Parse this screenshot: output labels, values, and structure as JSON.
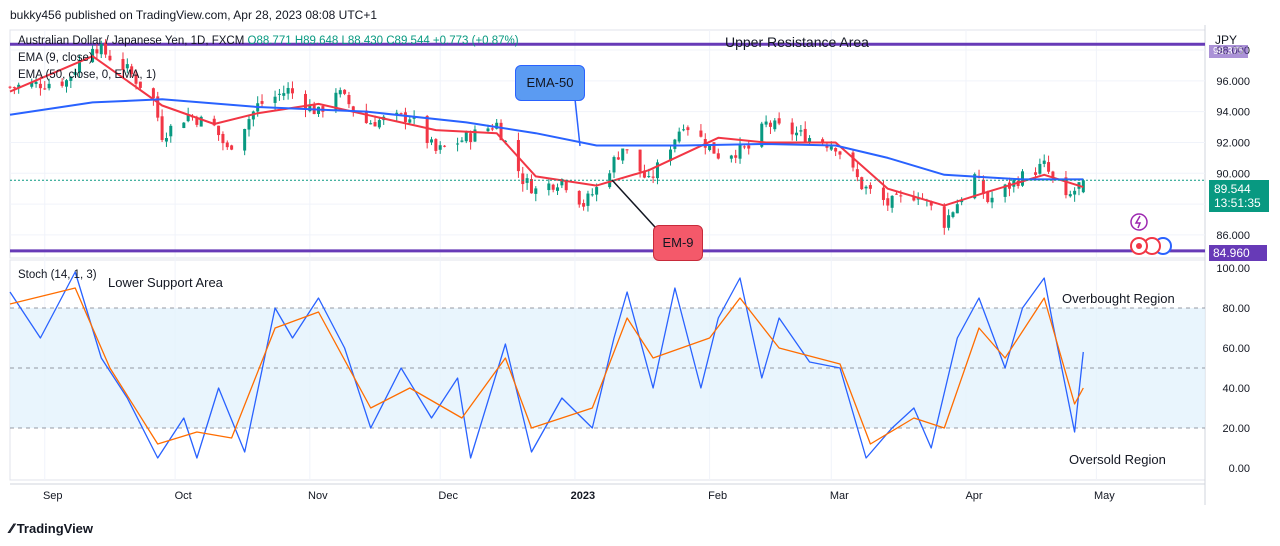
{
  "header": {
    "publisher_line": "bukky456 published on TradingView.com, Apr 28, 2023 08:08 UTC+1",
    "symbol": "Australian Dollar / Japanese Yen, 1D, FXCM",
    "ohlc": "O88.771 H89.648 L88.430 C89.544 +0.773 (+0.87%)",
    "currency": "JPY"
  },
  "legend": {
    "ema9": "EMA (9, close)",
    "ema50": "EMA (50, close, 0, EMA, 1)",
    "stoch": "Stoch (14, 1, 3)"
  },
  "annotations": {
    "upper_resistance": "Upper Resistance Area",
    "lower_support": "Lower Support Area",
    "ema50_callout": "EMA-50",
    "ema9_callout": "EM-9",
    "overbought": "Overbought Region",
    "oversold": "Oversold Region"
  },
  "price_labels": {
    "last_price": "89.544",
    "countdown": "13:51:35",
    "support_level": "84.960",
    "resistance_level": "98.375"
  },
  "colors": {
    "up": "#089981",
    "down": "#F23645",
    "ema9": "#F23645",
    "ema50": "#2962FF",
    "level_line": "#673AB7",
    "stoch_k": "#2962FF",
    "stoch_d": "#FF6D00",
    "stoch_band": "#E3F2FD"
  },
  "footer": {
    "brand": "TradingView"
  },
  "chart_data": [
    {
      "type": "candlestick",
      "title": "Australian Dollar / Japanese Yen, 1D, FXCM",
      "x_tick_labels": [
        "Sep",
        "Oct",
        "Nov",
        "Dec",
        "2023",
        "Feb",
        "Mar",
        "Apr",
        "May"
      ],
      "y_ticks": [
        86.0,
        88.0,
        90.0,
        92.0,
        94.0,
        96.0,
        98.0
      ],
      "ylim": [
        84.5,
        99.3
      ],
      "horizontal_levels": [
        98.375,
        84.96
      ],
      "last_close": 89.544,
      "close_path": [
        {
          "date": "2022-08-24",
          "close": 95.6
        },
        {
          "date": "2022-09-06",
          "close": 96.0
        },
        {
          "date": "2022-09-12",
          "close": 98.4
        },
        {
          "date": "2022-09-20",
          "close": 96.7
        },
        {
          "date": "2022-09-26",
          "close": 94.8
        },
        {
          "date": "2022-09-28",
          "close": 92.5
        },
        {
          "date": "2022-10-04",
          "close": 93.8
        },
        {
          "date": "2022-10-10",
          "close": 93.0
        },
        {
          "date": "2022-10-13",
          "close": 91.5
        },
        {
          "date": "2022-10-20",
          "close": 94.4
        },
        {
          "date": "2022-10-27",
          "close": 95.4
        },
        {
          "date": "2022-11-03",
          "close": 93.9
        },
        {
          "date": "2022-11-07",
          "close": 95.4
        },
        {
          "date": "2022-11-14",
          "close": 93.3
        },
        {
          "date": "2022-11-24",
          "close": 93.7
        },
        {
          "date": "2022-11-30",
          "close": 91.4
        },
        {
          "date": "2022-12-07",
          "close": 92.3
        },
        {
          "date": "2022-12-14",
          "close": 93.2
        },
        {
          "date": "2022-12-20",
          "close": 89.6
        },
        {
          "date": "2022-12-23",
          "close": 88.9
        },
        {
          "date": "2022-12-29",
          "close": 89.6
        },
        {
          "date": "2023-01-03",
          "close": 88.0
        },
        {
          "date": "2023-01-06",
          "close": 89.0
        },
        {
          "date": "2023-01-12",
          "close": 91.7
        },
        {
          "date": "2023-01-18",
          "close": 89.4
        },
        {
          "date": "2023-01-26",
          "close": 93.3
        },
        {
          "date": "2023-02-03",
          "close": 91.2
        },
        {
          "date": "2023-02-10",
          "close": 91.6
        },
        {
          "date": "2023-02-14",
          "close": 93.2
        },
        {
          "date": "2023-02-23",
          "close": 92.4
        },
        {
          "date": "2023-03-02",
          "close": 91.8
        },
        {
          "date": "2023-03-08",
          "close": 89.2
        },
        {
          "date": "2023-03-14",
          "close": 88.0
        },
        {
          "date": "2023-03-21",
          "close": 88.7
        },
        {
          "date": "2023-03-27",
          "close": 86.8
        },
        {
          "date": "2023-04-03",
          "close": 89.8
        },
        {
          "date": "2023-04-06",
          "close": 88.2
        },
        {
          "date": "2023-04-14",
          "close": 89.8
        },
        {
          "date": "2023-04-19",
          "close": 90.5
        },
        {
          "date": "2023-04-24",
          "close": 88.2
        },
        {
          "date": "2023-04-28",
          "close": 89.544
        }
      ],
      "series": [
        {
          "name": "EMA (9, close)",
          "values": [
            {
              "date": "2022-08-24",
              "value": 95.3
            },
            {
              "date": "2022-09-12",
              "value": 97.6
            },
            {
              "date": "2022-09-28",
              "value": 94.4
            },
            {
              "date": "2022-10-10",
              "value": 93.2
            },
            {
              "date": "2022-10-20",
              "value": 93.9
            },
            {
              "date": "2022-11-03",
              "value": 94.5
            },
            {
              "date": "2022-11-14",
              "value": 93.8
            },
            {
              "date": "2022-11-30",
              "value": 92.8
            },
            {
              "date": "2022-12-14",
              "value": 92.6
            },
            {
              "date": "2022-12-23",
              "value": 89.8
            },
            {
              "date": "2023-01-06",
              "value": 89.2
            },
            {
              "date": "2023-01-18",
              "value": 90.2
            },
            {
              "date": "2023-02-03",
              "value": 92.3
            },
            {
              "date": "2023-02-14",
              "value": 92.0
            },
            {
              "date": "2023-03-02",
              "value": 92.0
            },
            {
              "date": "2023-03-14",
              "value": 89.0
            },
            {
              "date": "2023-03-27",
              "value": 87.9
            },
            {
              "date": "2023-04-06",
              "value": 88.8
            },
            {
              "date": "2023-04-19",
              "value": 89.9
            },
            {
              "date": "2023-04-28",
              "value": 89.1
            }
          ]
        },
        {
          "name": "EMA (50, close, 0, EMA, 1)",
          "values": [
            {
              "date": "2022-08-24",
              "value": 93.8
            },
            {
              "date": "2022-09-12",
              "value": 94.6
            },
            {
              "date": "2022-09-28",
              "value": 94.8
            },
            {
              "date": "2022-10-20",
              "value": 94.3
            },
            {
              "date": "2022-11-14",
              "value": 94.0
            },
            {
              "date": "2022-12-07",
              "value": 93.3
            },
            {
              "date": "2022-12-23",
              "value": 92.6
            },
            {
              "date": "2023-01-06",
              "value": 91.8
            },
            {
              "date": "2023-01-26",
              "value": 91.8
            },
            {
              "date": "2023-02-14",
              "value": 91.9
            },
            {
              "date": "2023-03-02",
              "value": 91.8
            },
            {
              "date": "2023-03-14",
              "value": 91.0
            },
            {
              "date": "2023-03-27",
              "value": 89.9
            },
            {
              "date": "2023-04-14",
              "value": 89.6
            },
            {
              "date": "2023-04-28",
              "value": 89.6
            }
          ]
        }
      ]
    },
    {
      "type": "line",
      "title": "Stoch (14, 1, 3)",
      "y_ticks": [
        0.0,
        20.0,
        40.0,
        60.0,
        80.0,
        100.0
      ],
      "ylim": [
        -6,
        104
      ],
      "bands": [
        20,
        50,
        80
      ],
      "series": [
        {
          "name": "%K",
          "values": [
            {
              "date": "2022-08-24",
              "value": 88
            },
            {
              "date": "2022-08-31",
              "value": 65
            },
            {
              "date": "2022-09-08",
              "value": 98
            },
            {
              "date": "2022-09-14",
              "value": 55
            },
            {
              "date": "2022-09-20",
              "value": 35
            },
            {
              "date": "2022-09-27",
              "value": 5
            },
            {
              "date": "2022-10-03",
              "value": 25
            },
            {
              "date": "2022-10-06",
              "value": 5
            },
            {
              "date": "2022-10-11",
              "value": 40
            },
            {
              "date": "2022-10-17",
              "value": 8
            },
            {
              "date": "2022-10-24",
              "value": 80
            },
            {
              "date": "2022-10-28",
              "value": 65
            },
            {
              "date": "2022-11-03",
              "value": 85
            },
            {
              "date": "2022-11-09",
              "value": 60
            },
            {
              "date": "2022-11-15",
              "value": 20
            },
            {
              "date": "2022-11-22",
              "value": 50
            },
            {
              "date": "2022-11-29",
              "value": 25
            },
            {
              "date": "2022-12-05",
              "value": 45
            },
            {
              "date": "2022-12-08",
              "value": 5
            },
            {
              "date": "2022-12-16",
              "value": 62
            },
            {
              "date": "2022-12-22",
              "value": 8
            },
            {
              "date": "2022-12-29",
              "value": 35
            },
            {
              "date": "2023-01-05",
              "value": 20
            },
            {
              "date": "2023-01-10",
              "value": 65
            },
            {
              "date": "2023-01-13",
              "value": 88
            },
            {
              "date": "2023-01-19",
              "value": 40
            },
            {
              "date": "2023-01-24",
              "value": 90
            },
            {
              "date": "2023-01-30",
              "value": 40
            },
            {
              "date": "2023-02-03",
              "value": 75
            },
            {
              "date": "2023-02-08",
              "value": 95
            },
            {
              "date": "2023-02-13",
              "value": 45
            },
            {
              "date": "2023-02-17",
              "value": 75
            },
            {
              "date": "2023-02-24",
              "value": 53
            },
            {
              "date": "2023-03-03",
              "value": 50
            },
            {
              "date": "2023-03-09",
              "value": 5
            },
            {
              "date": "2023-03-15",
              "value": 20
            },
            {
              "date": "2023-03-20",
              "value": 30
            },
            {
              "date": "2023-03-24",
              "value": 10
            },
            {
              "date": "2023-03-30",
              "value": 65
            },
            {
              "date": "2023-04-04",
              "value": 85
            },
            {
              "date": "2023-04-10",
              "value": 50
            },
            {
              "date": "2023-04-14",
              "value": 80
            },
            {
              "date": "2023-04-19",
              "value": 95
            },
            {
              "date": "2023-04-21",
              "value": 72
            },
            {
              "date": "2023-04-26",
              "value": 18
            },
            {
              "date": "2023-04-28",
              "value": 58
            }
          ]
        },
        {
          "name": "%D",
          "values": [
            {
              "date": "2022-08-24",
              "value": 82
            },
            {
              "date": "2022-09-08",
              "value": 90
            },
            {
              "date": "2022-09-16",
              "value": 50
            },
            {
              "date": "2022-09-27",
              "value": 12
            },
            {
              "date": "2022-10-06",
              "value": 18
            },
            {
              "date": "2022-10-14",
              "value": 15
            },
            {
              "date": "2022-10-24",
              "value": 70
            },
            {
              "date": "2022-11-03",
              "value": 78
            },
            {
              "date": "2022-11-15",
              "value": 30
            },
            {
              "date": "2022-11-24",
              "value": 40
            },
            {
              "date": "2022-12-06",
              "value": 25
            },
            {
              "date": "2022-12-16",
              "value": 55
            },
            {
              "date": "2022-12-22",
              "value": 20
            },
            {
              "date": "2023-01-05",
              "value": 30
            },
            {
              "date": "2023-01-13",
              "value": 75
            },
            {
              "date": "2023-01-19",
              "value": 55
            },
            {
              "date": "2023-02-01",
              "value": 65
            },
            {
              "date": "2023-02-08",
              "value": 85
            },
            {
              "date": "2023-02-17",
              "value": 60
            },
            {
              "date": "2023-03-03",
              "value": 52
            },
            {
              "date": "2023-03-10",
              "value": 12
            },
            {
              "date": "2023-03-20",
              "value": 25
            },
            {
              "date": "2023-03-27",
              "value": 20
            },
            {
              "date": "2023-04-04",
              "value": 70
            },
            {
              "date": "2023-04-10",
              "value": 55
            },
            {
              "date": "2023-04-19",
              "value": 85
            },
            {
              "date": "2023-04-26",
              "value": 32
            },
            {
              "date": "2023-04-28",
              "value": 40
            }
          ]
        }
      ]
    }
  ]
}
